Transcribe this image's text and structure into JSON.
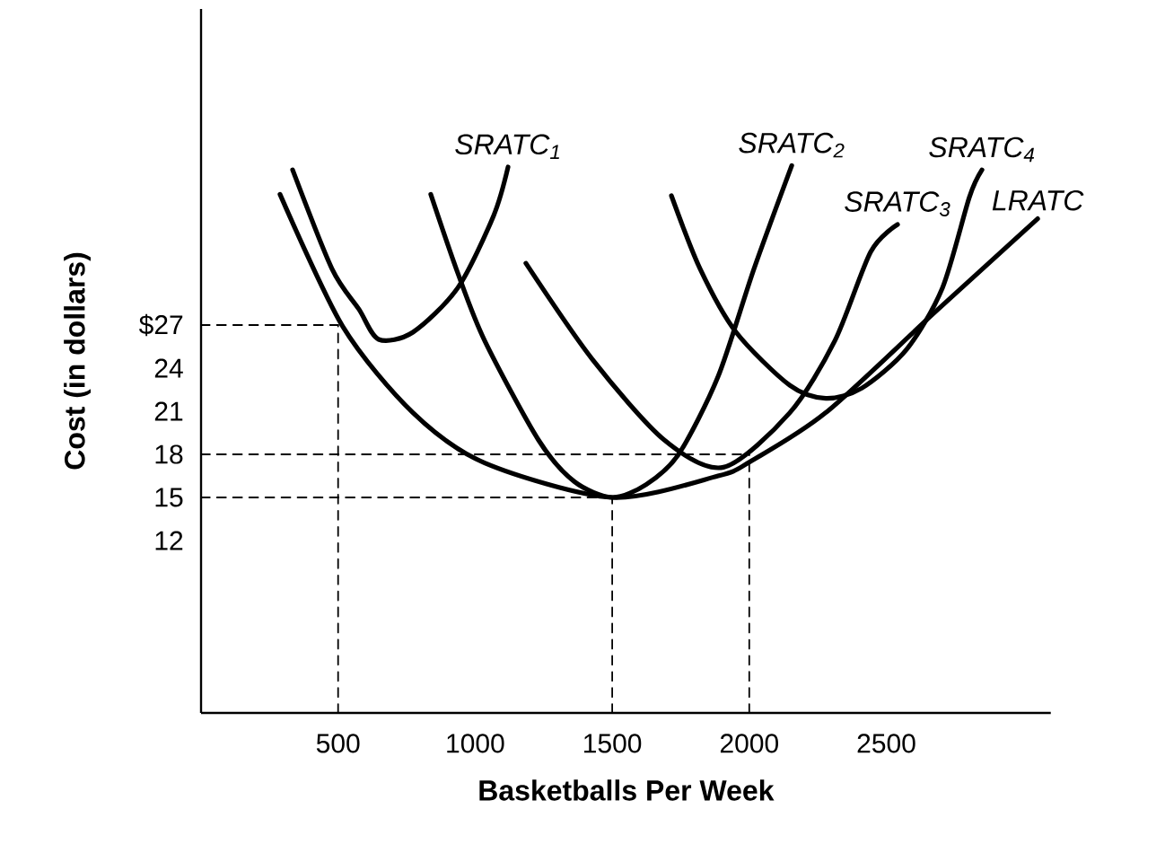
{
  "chart_data": {
    "type": "line",
    "xlabel": "Basketballs Per Week",
    "ylabel": "Cost (in dollars)",
    "xlim": [
      0,
      3100
    ],
    "ylim": [
      0,
      49
    ],
    "xticks": [
      500,
      1000,
      1500,
      2000,
      2500
    ],
    "yticks": [
      {
        "value": 27,
        "label": "$27"
      },
      24,
      21,
      18,
      15,
      12
    ],
    "marker": "none",
    "series": [
      {
        "name": "SRATC$_{1}$",
        "color": "#000000",
        "x": [
          334,
          478,
          576,
          648,
          773,
          937,
          1067,
          1120
        ],
        "values": [
          37.8,
          30.9,
          28.1,
          26,
          26.5,
          29.6,
          34.6,
          38
        ]
      },
      {
        "name": "SRATC$_{2}$",
        "color": "#000000",
        "x": [
          838,
          937,
          1035,
          1231,
          1362,
          1500,
          1624,
          1742,
          1886,
          2017,
          2155
        ],
        "values": [
          36.1,
          30.6,
          25.9,
          19,
          16.1,
          15,
          15.9,
          18,
          23.4,
          30.9,
          38.1
        ]
      },
      {
        "name": "SRATC$_{3}$",
        "color": "#000000",
        "x": [
          1185,
          1428,
          1690,
          1906,
          2148,
          2312,
          2443,
          2541
        ],
        "values": [
          31.3,
          24.6,
          19,
          17.1,
          20.9,
          25.9,
          32.1,
          34
        ]
      },
      {
        "name": "SRATC$_{4}$",
        "color": "#000000",
        "x": [
          1716,
          1821,
          1952,
          2148,
          2279,
          2410,
          2574,
          2705,
          2803,
          2849
        ],
        "values": [
          36,
          30.9,
          26.5,
          22.8,
          21.9,
          22.6,
          25.3,
          29.6,
          35.9,
          37.8
        ]
      },
      {
        "name": "LRATC",
        "color": "#000000",
        "x": [
          288,
          517,
          773,
          1035,
          1500,
          1886,
          2004,
          2279,
          2672,
          3052
        ],
        "values": [
          36.1,
          26.9,
          20.9,
          17.4,
          15,
          16.5,
          17.5,
          20.9,
          27.8,
          34.4
        ]
      },
      {
        "color": "#000000",
        "line_style": "dashed",
        "x": [
          0,
          500
        ],
        "values": [
          27,
          27
        ]
      },
      {
        "color": "#000000",
        "line_style": "dashed",
        "x": [
          500,
          500
        ],
        "values": [
          0,
          27
        ]
      },
      {
        "color": "#000000",
        "line_style": "dashed",
        "x": [
          0,
          2000
        ],
        "values": [
          18,
          18
        ]
      },
      {
        "color": "#000000",
        "line_style": "dashed",
        "x": [
          2000,
          2000
        ],
        "values": [
          0,
          18
        ]
      },
      {
        "color": "#000000",
        "line_style": "dashed",
        "x": [
          0,
          1500
        ],
        "values": [
          15,
          15
        ]
      },
      {
        "color": "#000000",
        "line_style": "dashed",
        "x": [
          1500,
          1500
        ],
        "values": [
          0,
          15
        ]
      }
    ]
  }
}
